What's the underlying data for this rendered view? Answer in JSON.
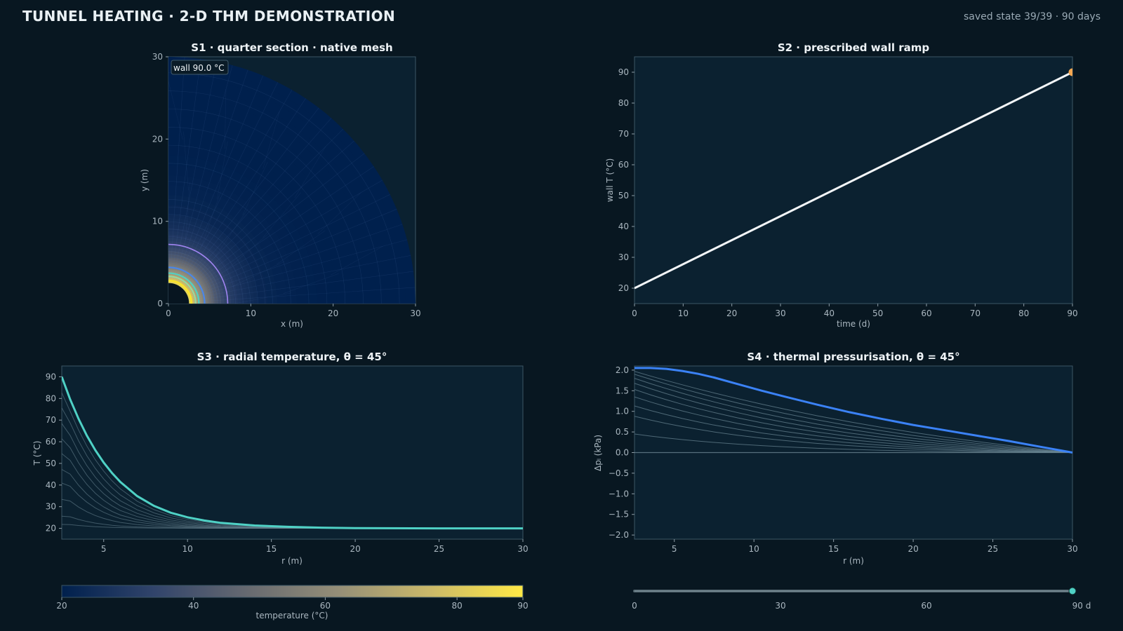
{
  "header": {
    "title": "TUNNEL HEATING · 2-D THM DEMONSTRATION",
    "status": "saved state 39/39 · 90 days"
  },
  "chart_data": [
    {
      "id": "s1",
      "type": "heatmap",
      "title": "S1 · quarter section · native mesh",
      "xlabel": "x (m)",
      "ylabel": "y (m)",
      "xlim": [
        0,
        30
      ],
      "ylim": [
        0,
        30
      ],
      "xticks": [
        0,
        10,
        20,
        30
      ],
      "yticks": [
        0,
        10,
        20,
        30
      ],
      "annotation": "wall 90.0 °C",
      "tunnel_radius_m": 2.5,
      "outer_radius_m": 30,
      "contour_radii_m": [
        2.8,
        3.3,
        3.7,
        4.4,
        7.2
      ],
      "contour_colors": [
        "#fde725",
        "#9ad9a0",
        "#4fd1c5",
        "#4a86e8",
        "#a084f0"
      ]
    },
    {
      "id": "s2",
      "type": "line",
      "title": "S2 · prescribed wall ramp",
      "xlabel": "time (d)",
      "ylabel": "wall T (°C)",
      "xlim": [
        0,
        90
      ],
      "ylim": [
        15,
        95
      ],
      "xticks": [
        0,
        10,
        20,
        30,
        40,
        50,
        60,
        70,
        80,
        90
      ],
      "yticks": [
        20,
        30,
        40,
        50,
        60,
        70,
        80,
        90
      ],
      "x": [
        0,
        90
      ],
      "y": [
        20,
        90
      ],
      "marker": {
        "x": 90,
        "y": 90
      }
    },
    {
      "id": "s3",
      "type": "line",
      "title": "S3 · radial temperature, θ = 45°",
      "xlabel": "r (m)",
      "ylabel": "T (°C)",
      "xlim": [
        2.5,
        30
      ],
      "ylim": [
        15,
        95
      ],
      "xticks": [
        5,
        10,
        15,
        20,
        25,
        30
      ],
      "yticks": [
        20,
        30,
        40,
        50,
        60,
        70,
        80,
        90
      ],
      "x": [
        2.5,
        3,
        3.5,
        4,
        4.5,
        5,
        5.5,
        6,
        7,
        8,
        9,
        10,
        11,
        12,
        14,
        16,
        18,
        20,
        25,
        30
      ],
      "current": [
        90,
        79.6,
        70.6,
        62.8,
        56.1,
        50.4,
        45.5,
        41.4,
        34.9,
        30.4,
        27.2,
        25.1,
        23.6,
        22.5,
        21.3,
        20.7,
        20.3,
        20.1,
        20.0,
        20.0
      ],
      "history_wall_T": [
        21.8,
        25.6,
        33.4,
        40.9,
        47.2,
        54.5,
        61.4,
        68.4,
        75.6,
        82.6
      ]
    },
    {
      "id": "s4",
      "type": "line",
      "title": "S4 · thermal pressurisation, θ = 45°",
      "xlabel": "r (m)",
      "ylabel": "Δpₗ (kPa)",
      "xlim": [
        2.5,
        30
      ],
      "ylim": [
        -2.1,
        2.1
      ],
      "xticks": [
        5,
        10,
        15,
        20,
        25,
        30
      ],
      "yticks": [
        2.0,
        1.5,
        1.0,
        0.5,
        0.0,
        -0.5,
        -1.0,
        -1.5,
        -2.0
      ],
      "ytick_labels": [
        "2.0",
        "1.5",
        "1.0",
        "0.5",
        "0.0",
        "−0.5",
        "−1.0",
        "−1.5",
        "−2.0"
      ],
      "x": [
        2.5,
        3.5,
        4.5,
        5.5,
        6.5,
        7.5,
        9,
        10.5,
        12,
        14,
        16,
        18,
        20,
        22,
        24,
        26,
        28,
        30
      ],
      "current": [
        2.05,
        2.05,
        2.03,
        1.98,
        1.91,
        1.82,
        1.66,
        1.5,
        1.35,
        1.16,
        0.98,
        0.82,
        0.67,
        0.54,
        0.41,
        0.28,
        0.14,
        0.0
      ],
      "history_peaks": [
        0.45,
        0.88,
        1.13,
        1.35,
        1.53,
        1.68,
        1.8,
        1.9,
        1.97
      ]
    }
  ],
  "colorbar": {
    "label": "temperature (°C)",
    "min": 20,
    "max": 90,
    "ticks": [
      20,
      40,
      60,
      80,
      90
    ],
    "colors": [
      "#00204d",
      "#31446b",
      "#666970",
      "#958f78",
      "#cbb969",
      "#ffe945"
    ]
  },
  "time_slider": {
    "min": 0,
    "max": 90,
    "value": 90,
    "ticks": [
      "0",
      "30",
      "60",
      "90 d"
    ]
  },
  "colors": {
    "s2_line": "#f3f6f8",
    "s2_marker": "#f6a852",
    "s3_line": "#4fd1c5",
    "s4_line": "#3b82f6",
    "history": "#6b8794",
    "slider_knob": "#4fd1c5"
  }
}
